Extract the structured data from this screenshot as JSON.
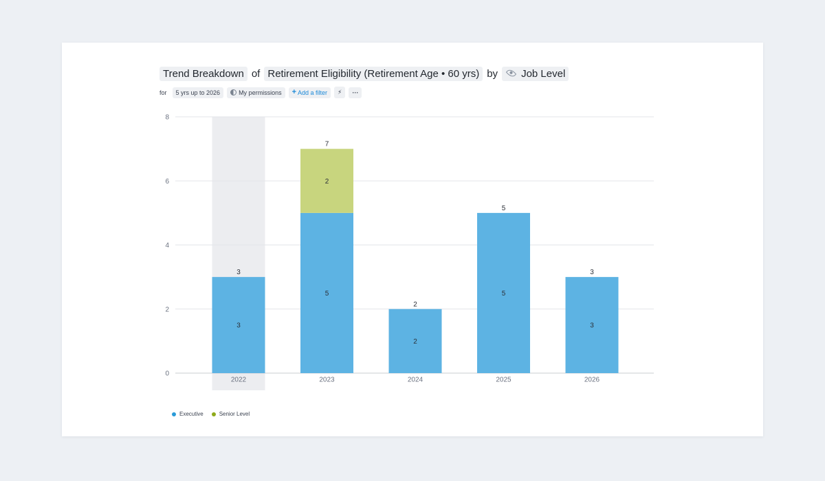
{
  "header": {
    "metric": "Trend Breakdown",
    "of": "of",
    "subject": "Retirement Eligibility (Retirement Age • 60 yrs)",
    "by": "by",
    "dimension": "Job Level"
  },
  "filters": {
    "for": "for",
    "period": "5 yrs up to 2026",
    "permissions": "My permissions",
    "add_filter": "Add a filter",
    "more": "···"
  },
  "colors": {
    "executive": "#5db3e3",
    "senior_level": "#c8d57e",
    "highlight": "#ecedf0",
    "grid": "#e3e5e9",
    "axis_text": "#6b7280",
    "label_text": "#2b3038",
    "legend_executive": "#2a9bd8",
    "legend_senior": "#8faa1b"
  },
  "chart_data": {
    "type": "bar",
    "stacked": true,
    "categories": [
      "2022",
      "2023",
      "2024",
      "2025",
      "2026"
    ],
    "series": [
      {
        "name": "Executive",
        "values": [
          3,
          5,
          2,
          5,
          3
        ]
      },
      {
        "name": "Senior Level",
        "values": [
          0,
          2,
          0,
          0,
          0
        ]
      }
    ],
    "totals": [
      3,
      7,
      2,
      5,
      3
    ],
    "highlighted_category": "2022",
    "yticks": [
      0,
      2,
      4,
      6,
      8
    ],
    "ylim": [
      0,
      8
    ],
    "grid": true,
    "legend_position": "bottom-left"
  }
}
